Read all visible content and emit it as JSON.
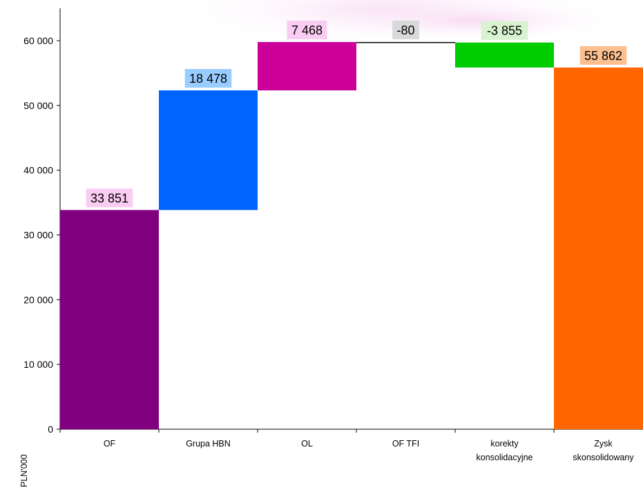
{
  "chart_data": {
    "type": "bar",
    "subtype": "waterfall",
    "ylabel": "PLN'000",
    "ylim": [
      0,
      60000
    ],
    "yticks": [
      0,
      10000,
      20000,
      30000,
      40000,
      50000,
      60000
    ],
    "ytick_labels": [
      "0",
      "10 000",
      "20 000",
      "30 000",
      "40 000",
      "50 000",
      "60 000"
    ],
    "categories": [
      "OF",
      "Grupa HBN",
      "OL",
      "OF TFI",
      "korekty\nkonsolidacyjne",
      "Zysk\nskonsolidowany"
    ],
    "category_lines": [
      [
        "OF"
      ],
      [
        "Grupa HBN"
      ],
      [
        "OL"
      ],
      [
        "OF TFI"
      ],
      [
        "korekty",
        "konsolidacyjne"
      ],
      [
        "Zysk",
        "skonsolidowany"
      ]
    ],
    "values": [
      33851,
      18478,
      7468,
      -80,
      -3855,
      55862
    ],
    "value_labels": [
      "33 851",
      "18 478",
      "7 468",
      "-80",
      "-3 855",
      "55 862"
    ],
    "bar_kind": [
      "total",
      "delta",
      "delta",
      "delta",
      "delta",
      "total"
    ],
    "bar_colors": [
      "#800080",
      "#0066FF",
      "#CC0099",
      "#000000",
      "#00CC00",
      "#FF6600"
    ],
    "label_bg_colors": [
      "#F9CCF2",
      "#99CCFF",
      "#F9CCF2",
      "#D9D9D9",
      "#D9F2D0",
      "#FCBF8F"
    ],
    "tick_dashes": [
      "",
      "-",
      "-",
      "-",
      "",
      ""
    ],
    "grid": false,
    "legend": "none"
  }
}
